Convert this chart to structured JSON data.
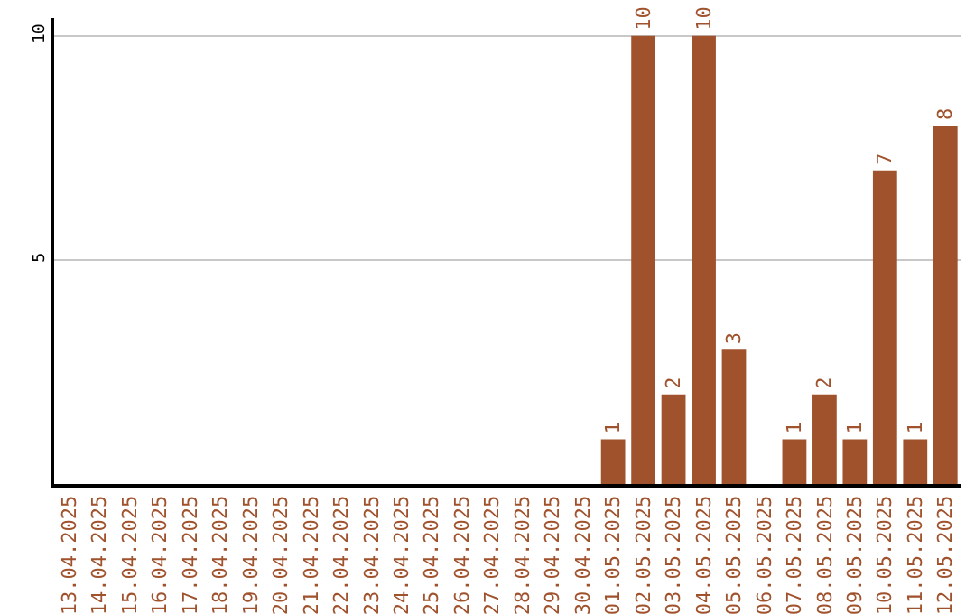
{
  "chart_data": {
    "type": "bar",
    "categories": [
      "13.04.2025",
      "14.04.2025",
      "15.04.2025",
      "16.04.2025",
      "17.04.2025",
      "18.04.2025",
      "19.04.2025",
      "20.04.2025",
      "21.04.2025",
      "22.04.2025",
      "23.04.2025",
      "24.04.2025",
      "25.04.2025",
      "26.04.2025",
      "27.04.2025",
      "28.04.2025",
      "29.04.2025",
      "30.04.2025",
      "01.05.2025",
      "02.05.2025",
      "03.05.2025",
      "04.05.2025",
      "05.05.2025",
      "06.05.2025",
      "07.05.2025",
      "08.05.2025",
      "09.05.2025",
      "10.05.2025",
      "11.05.2025",
      "12.05.2025"
    ],
    "values": [
      0,
      0,
      0,
      0,
      0,
      0,
      0,
      0,
      0,
      0,
      0,
      0,
      0,
      0,
      0,
      0,
      0,
      0,
      1,
      10,
      2,
      10,
      3,
      0,
      1,
      2,
      1,
      7,
      1,
      8
    ],
    "value_labels": [
      null,
      null,
      null,
      null,
      null,
      null,
      null,
      null,
      null,
      null,
      null,
      null,
      null,
      null,
      null,
      null,
      null,
      null,
      "1",
      "10",
      "2",
      "10",
      "3",
      null,
      "1",
      "2",
      "1",
      "7",
      "1",
      "8"
    ],
    "color": "#a0522d",
    "ylim": [
      0,
      10.4
    ],
    "yticks": [
      5,
      10
    ],
    "grid": "y",
    "legend": false
  }
}
